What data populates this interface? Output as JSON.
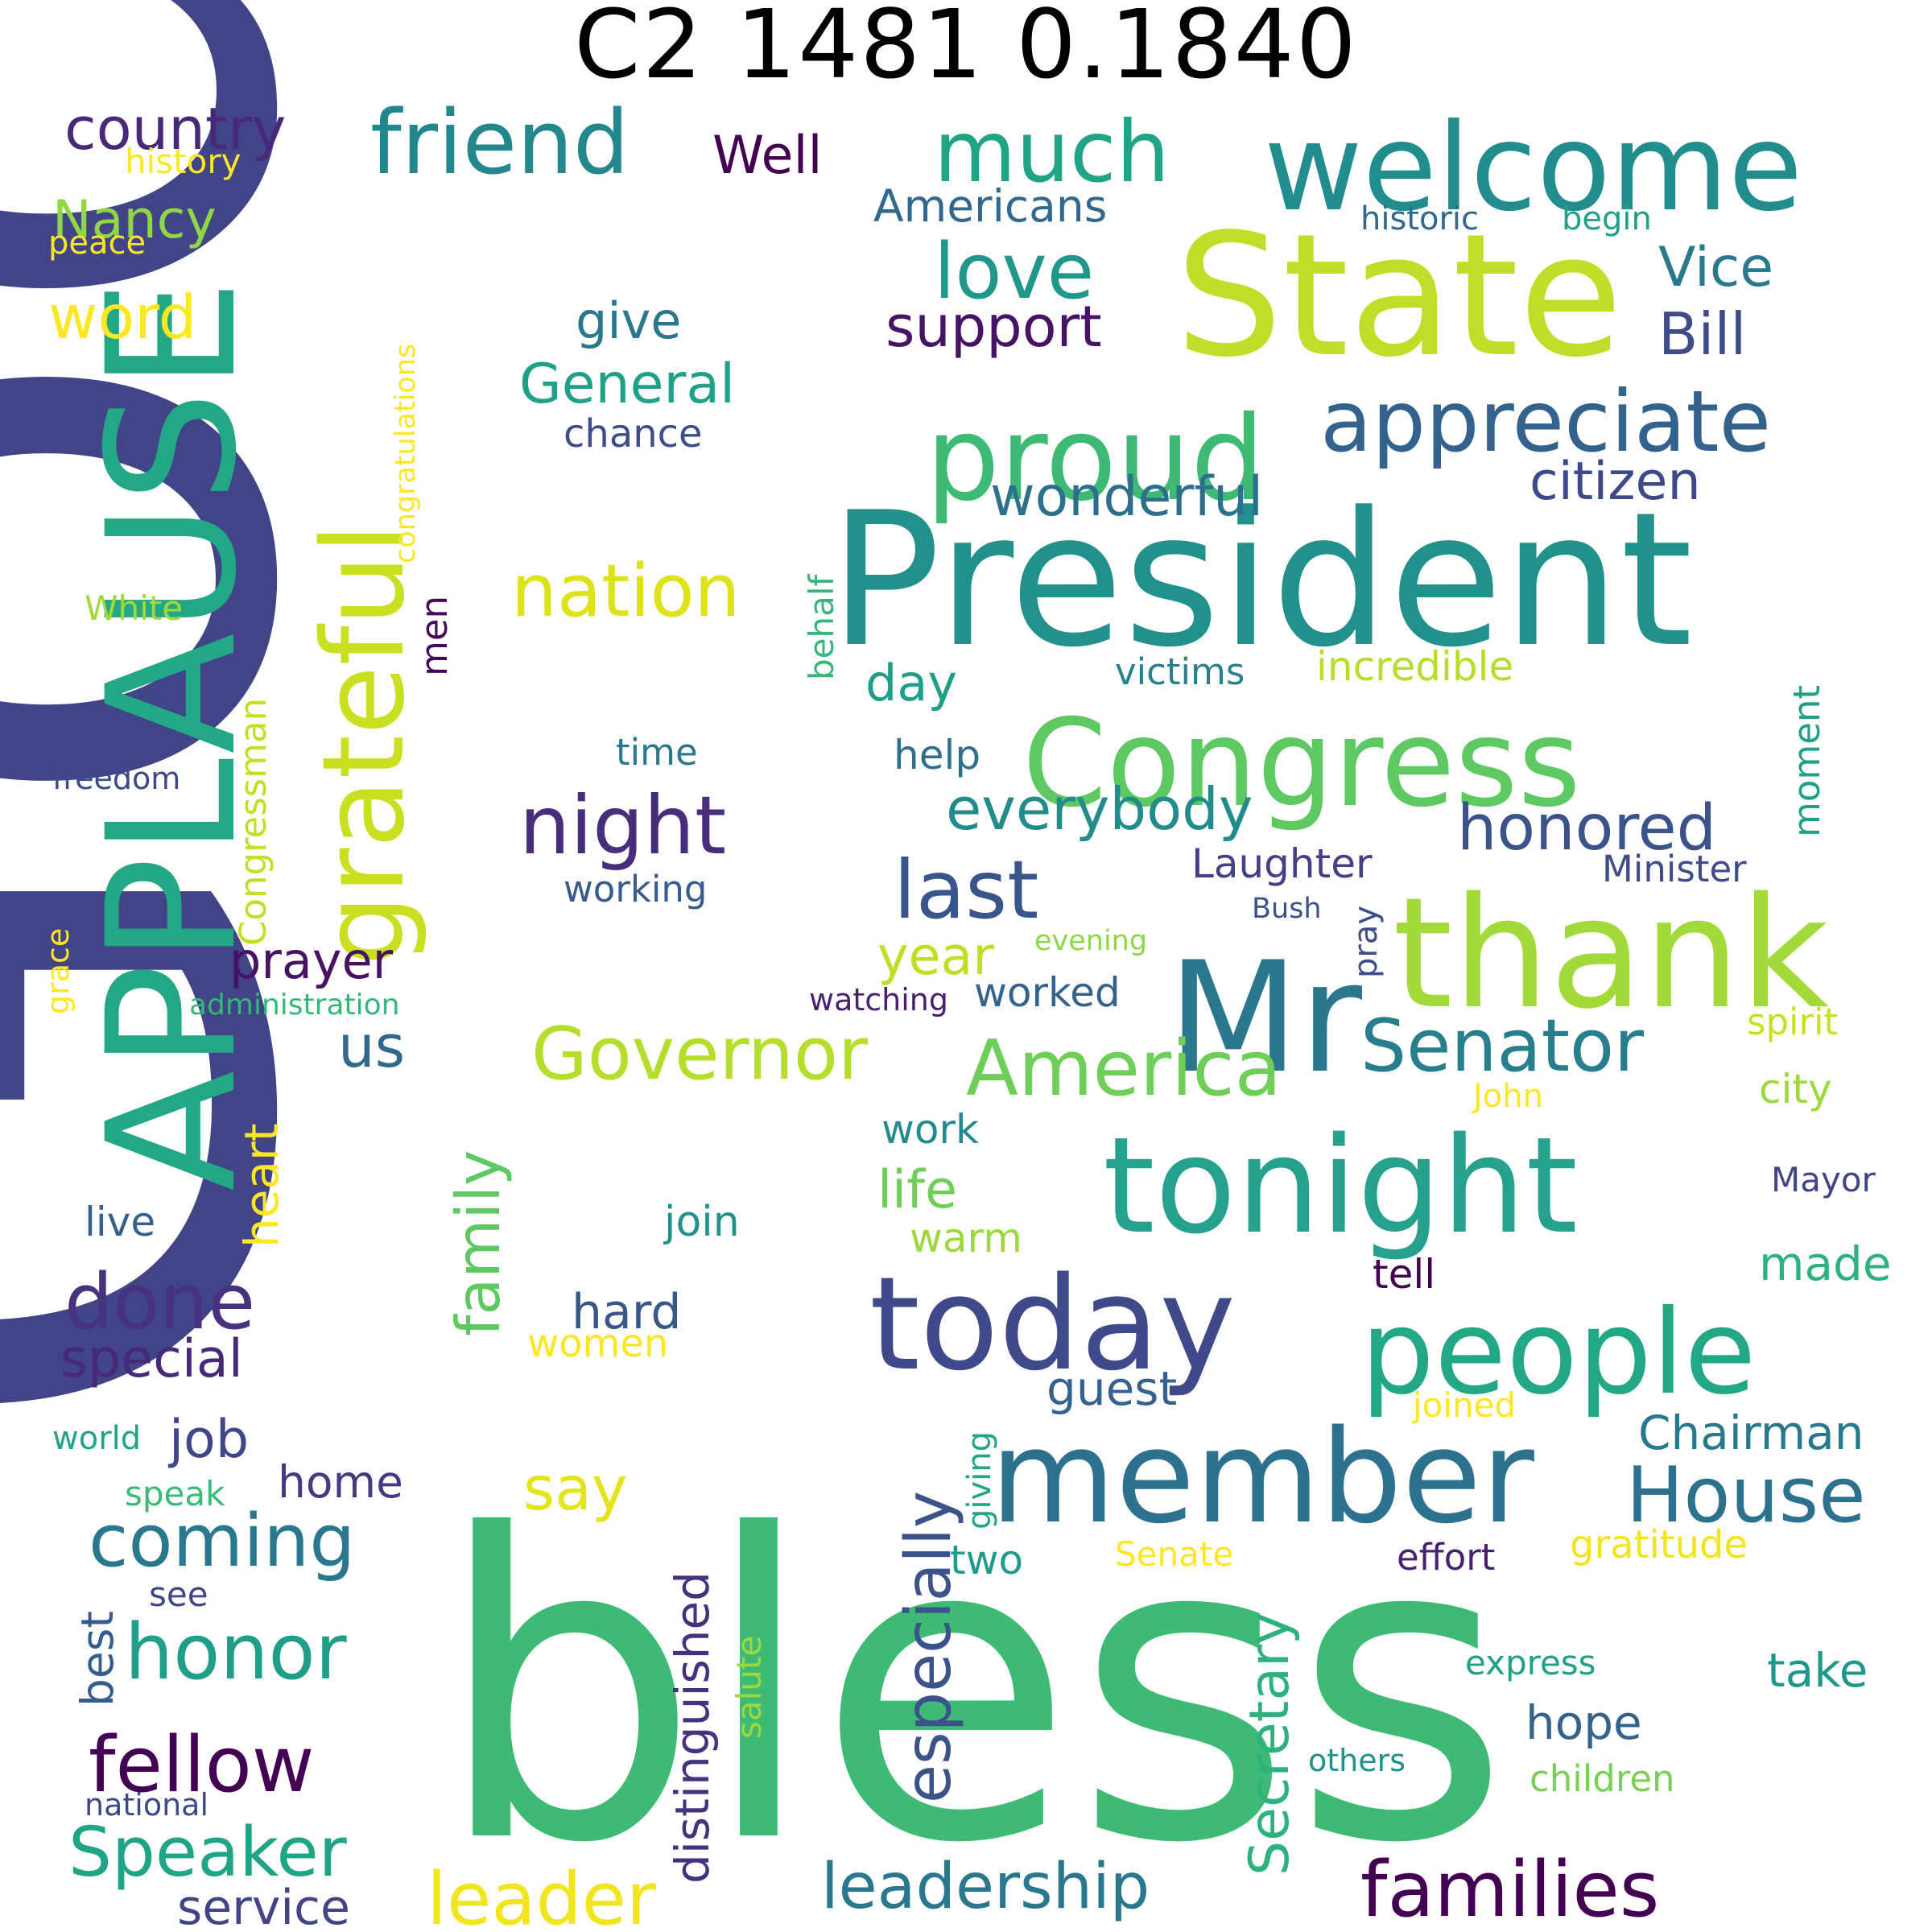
{
  "title": "C2 1481 0.1840",
  "palette": {
    "viridis_dark_purple": "#440154",
    "viridis_indigo": "#414487",
    "viridis_blue": "#2a788e",
    "viridis_teal": "#22a884",
    "viridis_green": "#3dbb74",
    "viridis_lime": "#7ad151",
    "viridis_yellow": "#fde725"
  },
  "words": [
    {
      "text": "God",
      "color": "#414487"
    },
    {
      "text": "bless",
      "color": "#3dbb74"
    },
    {
      "text": "President",
      "color": "#21918c"
    },
    {
      "text": "APPLAUSE",
      "color": "#22a884"
    },
    {
      "text": "State",
      "color": "#bddf26"
    },
    {
      "text": "welcome",
      "color": "#228d8d"
    },
    {
      "text": "thank",
      "color": "#a2da37"
    },
    {
      "text": "Mr",
      "color": "#2a788e"
    },
    {
      "text": "Congress",
      "color": "#5ec962"
    },
    {
      "text": "member",
      "color": "#2c728e"
    },
    {
      "text": "tonight",
      "color": "#25a18e"
    },
    {
      "text": "today",
      "color": "#3f4a8a"
    },
    {
      "text": "people",
      "color": "#22a884"
    },
    {
      "text": "proud",
      "color": "#3dbb74"
    },
    {
      "text": "grateful",
      "color": "#c8e020"
    },
    {
      "text": "appreciate",
      "color": "#33638d"
    },
    {
      "text": "friend",
      "color": "#23888e"
    },
    {
      "text": "much",
      "color": "#20a486"
    },
    {
      "text": "country",
      "color": "#482878"
    },
    {
      "text": "night",
      "color": "#472d7b"
    },
    {
      "text": "America",
      "color": "#6ece58"
    },
    {
      "text": "Governor",
      "color": "#b5de2b"
    },
    {
      "text": "Senator",
      "color": "#277f8e"
    },
    {
      "text": "House",
      "color": "#2c728e"
    },
    {
      "text": "families",
      "color": "#440154"
    },
    {
      "text": "leadership",
      "color": "#2a788e"
    },
    {
      "text": "honored",
      "color": "#3b528b"
    },
    {
      "text": "last",
      "color": "#39568c"
    },
    {
      "text": "nation",
      "color": "#dde318"
    },
    {
      "text": "love",
      "color": "#1f988b"
    },
    {
      "text": "citizen",
      "color": "#3e4989"
    },
    {
      "text": "Vice",
      "color": "#2a788e"
    },
    {
      "text": "Bill",
      "color": "#3e4c8a"
    },
    {
      "text": "wonderful",
      "color": "#2d708e"
    },
    {
      "text": "support",
      "color": "#471365"
    },
    {
      "text": "Americans",
      "color": "#31688e"
    },
    {
      "text": "Well",
      "color": "#440154"
    },
    {
      "text": "Nancy",
      "color": "#8fd744"
    },
    {
      "text": "history",
      "color": "#fde725"
    },
    {
      "text": "peace",
      "color": "#fde725"
    },
    {
      "text": "word",
      "color": "#fde725"
    },
    {
      "text": "done",
      "color": "#46327e"
    },
    {
      "text": "special",
      "color": "#482878"
    },
    {
      "text": "coming",
      "color": "#2a788e"
    },
    {
      "text": "honor",
      "color": "#1f9e89"
    },
    {
      "text": "fellow",
      "color": "#440154"
    },
    {
      "text": "Speaker",
      "color": "#20a486"
    },
    {
      "text": "service",
      "color": "#414487"
    },
    {
      "text": "leader",
      "color": "#f1e51d"
    },
    {
      "text": "say",
      "color": "#e5e419"
    },
    {
      "text": "especially",
      "color": "#3b528b"
    },
    {
      "text": "distinguished",
      "color": "#46317e"
    },
    {
      "text": "Secretary",
      "color": "#2db27d"
    },
    {
      "text": "family",
      "color": "#5ec962"
    },
    {
      "text": "heart",
      "color": "#fde725"
    },
    {
      "text": "job",
      "color": "#404688"
    },
    {
      "text": "home",
      "color": "#443a83"
    },
    {
      "text": "prayer",
      "color": "#471164"
    },
    {
      "text": "us",
      "color": "#31688e"
    },
    {
      "text": "General",
      "color": "#1fa187"
    },
    {
      "text": "give",
      "color": "#2a788e"
    },
    {
      "text": "chance",
      "color": "#3e4c8a"
    },
    {
      "text": "working",
      "color": "#365c8d"
    },
    {
      "text": "time",
      "color": "#2a788e"
    },
    {
      "text": "Congressman",
      "color": "#c2df23"
    },
    {
      "text": "congratulations",
      "color": "#fde725"
    },
    {
      "text": "White",
      "color": "#a0da39"
    },
    {
      "text": "freedom",
      "color": "#3e4989"
    },
    {
      "text": "grace",
      "color": "#fde725"
    },
    {
      "text": "administration",
      "color": "#35b779"
    },
    {
      "text": "men",
      "color": "#46085c"
    },
    {
      "text": "behalf",
      "color": "#35b779"
    },
    {
      "text": "day",
      "color": "#1f9e89"
    },
    {
      "text": "help",
      "color": "#2e6e8e"
    },
    {
      "text": "everybody",
      "color": "#228c8d"
    },
    {
      "text": "year",
      "color": "#bddf26"
    },
    {
      "text": "worked",
      "color": "#33638d"
    },
    {
      "text": "work",
      "color": "#238a8d"
    },
    {
      "text": "life",
      "color": "#6ece58"
    },
    {
      "text": "warm",
      "color": "#9bd93c"
    },
    {
      "text": "live",
      "color": "#355f8d"
    },
    {
      "text": "join",
      "color": "#21918c"
    },
    {
      "text": "hard",
      "color": "#38588c"
    },
    {
      "text": "women",
      "color": "#fde725"
    },
    {
      "text": "world",
      "color": "#20a386"
    },
    {
      "text": "speak",
      "color": "#3aba76"
    },
    {
      "text": "see",
      "color": "#404688"
    },
    {
      "text": "best",
      "color": "#365c8d"
    },
    {
      "text": "national",
      "color": "#3e4989"
    },
    {
      "text": "salute",
      "color": "#9bd93c"
    },
    {
      "text": "giving",
      "color": "#21a685"
    },
    {
      "text": "two",
      "color": "#1e9b8a"
    },
    {
      "text": "guest",
      "color": "#34618d"
    },
    {
      "text": "watching",
      "color": "#482071"
    },
    {
      "text": "Laughter",
      "color": "#424086"
    },
    {
      "text": "evening",
      "color": "#8fd744"
    },
    {
      "text": "Bush",
      "color": "#3b528b"
    },
    {
      "text": "pray",
      "color": "#3e4c8a"
    },
    {
      "text": "victims",
      "color": "#26818e"
    },
    {
      "text": "incredible",
      "color": "#b5de2b"
    },
    {
      "text": "moment",
      "color": "#1fa187"
    },
    {
      "text": "Minister",
      "color": "#3e4c8a"
    },
    {
      "text": "spirit",
      "color": "#c8e020"
    },
    {
      "text": "city",
      "color": "#9bd93c"
    },
    {
      "text": "John",
      "color": "#fde725"
    },
    {
      "text": "Mayor",
      "color": "#414487"
    },
    {
      "text": "made",
      "color": "#2db27d"
    },
    {
      "text": "tell",
      "color": "#440154"
    },
    {
      "text": "joined",
      "color": "#fde725"
    },
    {
      "text": "Chairman",
      "color": "#29798e"
    },
    {
      "text": "gratitude",
      "color": "#f1e51d"
    },
    {
      "text": "Senate",
      "color": "#fde725"
    },
    {
      "text": "effort",
      "color": "#482071"
    },
    {
      "text": "express",
      "color": "#1fa187"
    },
    {
      "text": "take",
      "color": "#1f988b"
    },
    {
      "text": "hope",
      "color": "#33638d"
    },
    {
      "text": "others",
      "color": "#21918c"
    },
    {
      "text": "children",
      "color": "#7ad151"
    },
    {
      "text": "historic",
      "color": "#31688e"
    },
    {
      "text": "begin",
      "color": "#1fa187"
    }
  ]
}
